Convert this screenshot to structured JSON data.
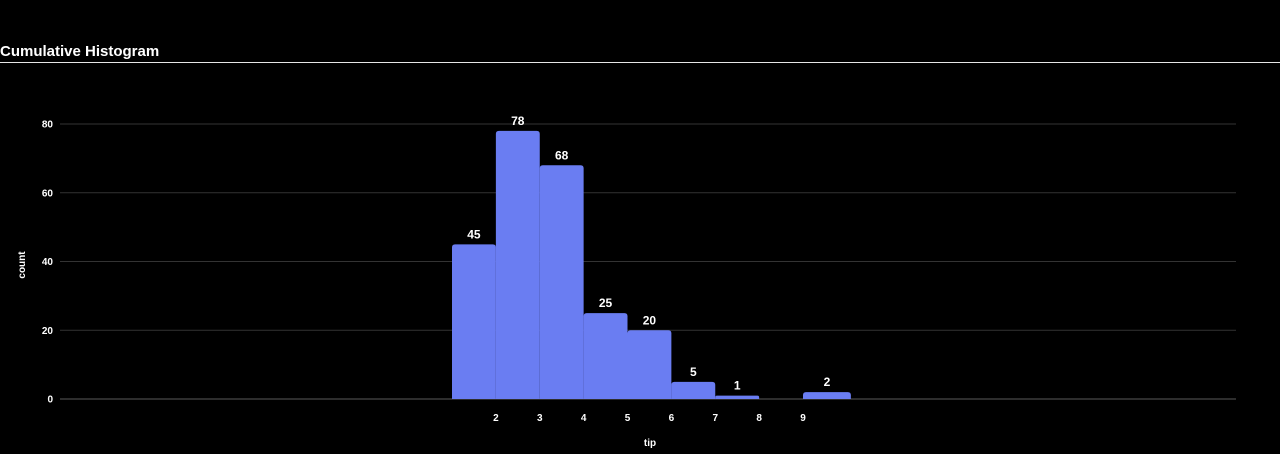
{
  "chart_data": {
    "type": "bar",
    "title": "Cumulative Histogram",
    "xlabel": "tip",
    "ylabel": "count",
    "bar_color": "#6a7df2",
    "grid": true,
    "ylim": [
      0,
      80
    ],
    "yticks": [
      0,
      20,
      40,
      60,
      80
    ],
    "xticks": [
      2,
      3,
      4,
      5,
      6,
      7,
      8,
      9
    ],
    "bins": [
      {
        "start": 1,
        "end": 2,
        "value": 45
      },
      {
        "start": 2,
        "end": 3,
        "value": 78
      },
      {
        "start": 3,
        "end": 4,
        "value": 68
      },
      {
        "start": 4,
        "end": 5,
        "value": 25
      },
      {
        "start": 5,
        "end": 6,
        "value": 20
      },
      {
        "start": 6,
        "end": 7,
        "value": 5
      },
      {
        "start": 7,
        "end": 8,
        "value": 1
      },
      {
        "start": 9,
        "end": 10,
        "value": 2
      }
    ]
  }
}
